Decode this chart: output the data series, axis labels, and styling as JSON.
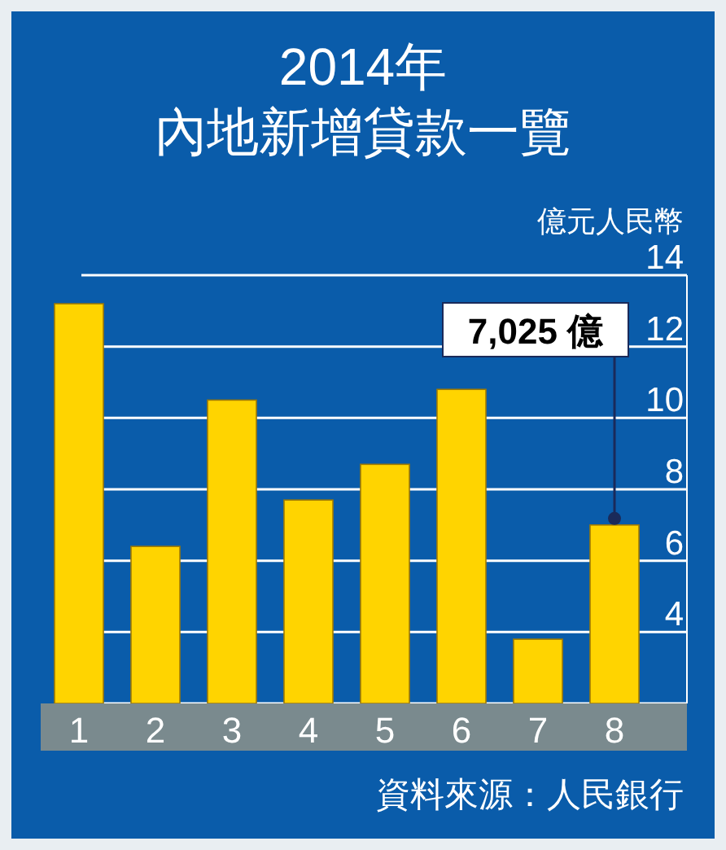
{
  "chart_data": {
    "type": "bar",
    "title": "2014年",
    "subtitle": "內地新增貸款一覽",
    "ylabel": "億元人民幣",
    "categories": [
      "1",
      "2",
      "3",
      "4",
      "5",
      "6",
      "7",
      "8"
    ],
    "values": [
      13.2,
      6.4,
      10.5,
      7.7,
      8.7,
      10.8,
      3.8,
      7.0
    ],
    "color": "#ffd400",
    "ylim": [
      2,
      14
    ],
    "yticks": [
      {
        "value": 2,
        "label": null
      },
      4,
      6,
      8,
      10,
      12,
      14
    ],
    "grid": "y",
    "annotations": [
      {
        "text": "7,025 億",
        "x": "8",
        "y": 7.0
      },
      "資料來源：人民銀行"
    ]
  }
}
